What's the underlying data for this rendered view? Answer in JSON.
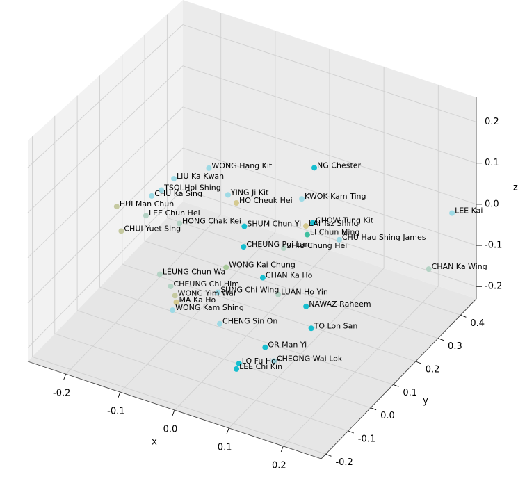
{
  "chart_data": {
    "type": "scatter3d",
    "xlabel": "x",
    "ylabel": "y",
    "zlabel": "z",
    "xlim": [
      -0.27,
      0.27
    ],
    "ylim": [
      -0.22,
      0.47
    ],
    "zlim": [
      -0.23,
      0.26
    ],
    "xticks": [
      -0.2,
      -0.1,
      {
        "value": 0,
        "label": "0.0"
      },
      0.1,
      0.2
    ],
    "yticks": [
      -0.2,
      -0.1,
      {
        "value": 0,
        "label": "0.0"
      },
      0.1,
      0.2,
      0.3,
      0.4
    ],
    "zticks": [
      -0.2,
      -0.1,
      {
        "value": 0,
        "label": "0.0"
      },
      0.1,
      0.2
    ],
    "grid": true,
    "labels": [
      "WONG Hang Kit",
      "NG Chester",
      "LIU Ka Kwan",
      "TSOI Hoi Shing",
      "CHU Ka Sing",
      "YING Ji Kit",
      "KWOK Kam Ting",
      "HO Cheuk Hei",
      "HUI Man Chun",
      "LEE Kai",
      "LEE Chun Hei",
      "CHOW Tung Kit",
      "LAI Tsz Shing",
      "SHUM Chun Yi",
      "HONG Chak Kei",
      "LI Chun Ming",
      "CHU Hau Shing James",
      "CHUI Yuet Sing",
      "CHEUNG Pui Lam",
      "SHIU Chung Hei",
      "CHAN Ka Wing",
      "WONG Kai Chung",
      "LEUNG Chun Wa",
      "CHAN Ka Ho",
      "CHEUNG Chi Him",
      "SUNG Chi Wing",
      "LUAN Ho Yin",
      "WONG Yim Wai",
      "MA Ka Ho",
      "WONG Kam Shing",
      "NAWAZ Raheem",
      "CHENG Sin On",
      "TO Lon San",
      "OR Man Yi",
      "CHEONG Wai Lok",
      "LO Fu Hon",
      "LEE Chi Kin"
    ],
    "x": [
      -0.139,
      0.005,
      -0.172,
      -0.173,
      -0.178,
      -0.075,
      0.032,
      -0.052,
      -0.211,
      0.258,
      -0.158,
      0.081,
      0.076,
      -0.008,
      -0.101,
      0.09,
      0.141,
      -0.17,
      0.02,
      0.077,
      0.247,
      0.025,
      -0.056,
      0.09,
      -0.024,
      0.049,
      0.135,
      -0.005,
      -0.025,
      -0.019,
      0.19,
      0.065,
      0.228,
      0.13,
      0.161,
      0.086,
      0.09
    ],
    "y": [
      0.269,
      0.39,
      0.193,
      0.14,
      0.109,
      0.199,
      0.269,
      0.181,
      0.033,
      0.391,
      0.035,
      0.2,
      0.181,
      0.11,
      0.046,
      0.153,
      0.172,
      -0.046,
      0.039,
      0.08,
      0.314,
      -0.051,
      -0.15,
      -0.045,
      -0.179,
      -0.146,
      -0.085,
      -0.206,
      -0.152,
      -0.183,
      -0.094,
      -0.176,
      -0.163,
      -0.131,
      -0.167,
      -0.141,
      -0.162
    ],
    "z": [
      0.015,
      0.015,
      0.015,
      0.015,
      0.015,
      0.015,
      0.015,
      0.015,
      0.015,
      0.015,
      0.015,
      0.015,
      0.015,
      0.015,
      0.015,
      0.015,
      0.015,
      0.015,
      0.015,
      0.015,
      -0.083,
      0.015,
      0.015,
      0.015,
      0.015,
      0.015,
      0.015,
      0.015,
      -0.034,
      -0.034,
      0.015,
      -0.034,
      0.015,
      -0.083,
      -0.083,
      -0.132,
      -0.132
    ],
    "colors": [
      "#9edae5",
      "#17becf",
      "#9edae5",
      "#9edae5",
      "#9edae5",
      "#9edae5",
      "#9edae5",
      "#d4c98f",
      "#c5c9a0",
      "#9edae5",
      "#b5d3c5",
      "#17becf",
      "#d4c98f",
      "#17becf",
      "#b5d3c5",
      "#3fbfa0",
      "#9edae5",
      "#c5c9a0",
      "#17becf",
      "#b5d3c5",
      "#b5d3c5",
      "#a8c99a",
      "#b5d3c5",
      "#17becf",
      "#b5d3c5",
      "#9edae5",
      "#b5d3c5",
      "#c5c9a0",
      "#d4c98f",
      "#9edae5",
      "#17becf",
      "#9edae5",
      "#17becf",
      "#17becf",
      "#9edae5",
      "#17becf",
      "#17becf"
    ]
  }
}
